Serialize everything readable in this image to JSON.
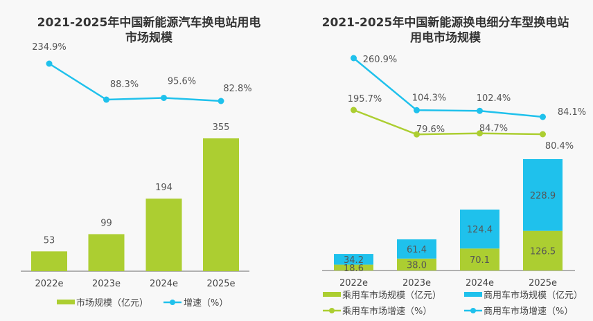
{
  "chart_data": [
    {
      "type": "bar",
      "title": "2021-2025年中国新能源汽车换电站用电市场规模",
      "categories": [
        "2022e",
        "2023e",
        "2024e",
        "2025e"
      ],
      "series": [
        {
          "name": "市场规模（亿元）",
          "kind": "bar",
          "color": "#acce31",
          "values": [
            53,
            99,
            194,
            355
          ],
          "labels": [
            "53",
            "99",
            "194",
            "355"
          ]
        },
        {
          "name": "增速（%）",
          "kind": "line",
          "color": "#1fc1ec",
          "values": [
            234.9,
            88.3,
            95.6,
            82.8
          ],
          "labels": [
            "234.9%",
            "88.3%",
            "95.6%",
            "82.8%"
          ]
        }
      ],
      "xlabel": "",
      "ylabel": "",
      "legend": "bottom",
      "grid": false
    },
    {
      "type": "bar",
      "stacked": true,
      "title": "2021-2025年中国新能源换电细分车型换电站用电市场规模",
      "categories": [
        "2022e",
        "2023e",
        "2024e",
        "2025e"
      ],
      "series": [
        {
          "name": "乘用车市场规模（亿元）",
          "kind": "bar",
          "color": "#acce31",
          "values": [
            18.6,
            38.0,
            70.1,
            126.5
          ],
          "labels": [
            "18.6",
            "38.0",
            "70.1",
            "126.5"
          ]
        },
        {
          "name": "商用车市场规模（亿元）",
          "kind": "bar",
          "color": "#1fc1ec",
          "values": [
            34.2,
            61.4,
            124.4,
            228.9
          ],
          "labels": [
            "34.2",
            "61.4",
            "124.4",
            "228.9"
          ]
        },
        {
          "name": "乘用车市场增速（%）",
          "kind": "line",
          "color": "#acce31",
          "values": [
            195.7,
            79.6,
            84.7,
            80.4
          ],
          "labels": [
            "195.7%",
            "79.6%",
            "84.7%",
            "80.4%"
          ]
        },
        {
          "name": "商用车市场增速（%）",
          "kind": "line",
          "color": "#1fc1ec",
          "values": [
            260.9,
            104.3,
            102.4,
            84.1
          ],
          "labels": [
            "260.9%",
            "104.3%",
            "102.4%",
            "84.1%"
          ]
        }
      ],
      "xlabel": "",
      "ylabel": "",
      "legend": "bottom",
      "grid": false
    }
  ],
  "titles": {
    "left_line1": "2021-2025年中国新能源汽车换电站用电",
    "left_line2": "市场规模",
    "right_line1": "2021-2025年中国新能源换电细分车型换电站",
    "right_line2": "用电市场规模"
  }
}
